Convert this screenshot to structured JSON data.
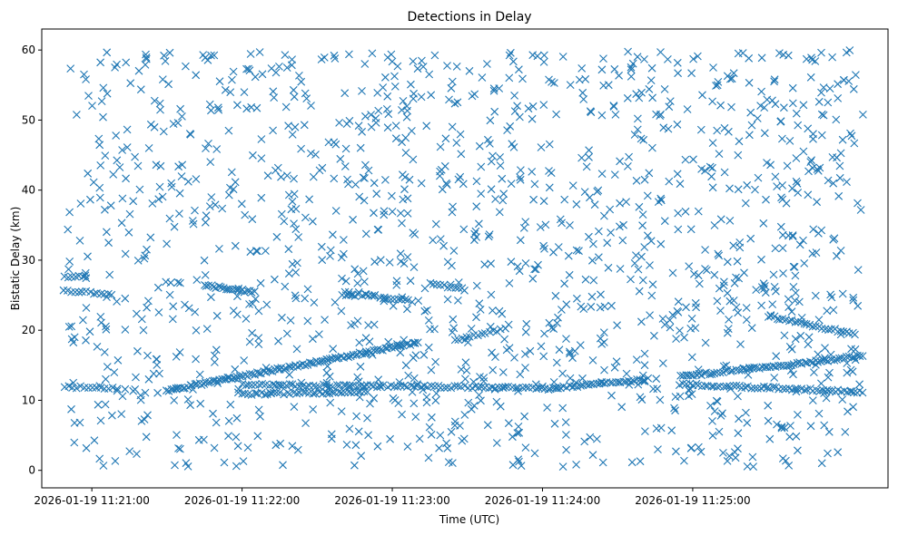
{
  "chart_data": {
    "type": "scatter",
    "title": "Detections in Delay",
    "xlabel": "Time (UTC)",
    "ylabel": "Bistatic Delay (km)",
    "x_axis_type": "datetime",
    "xlim": [
      "2026-01-19 11:20:40",
      "2026-01-19 11:26:18"
    ],
    "ylim": [
      -2.5,
      63
    ],
    "x_ticks": [
      "2026-01-19 11:21:00",
      "2026-01-19 11:22:00",
      "2026-01-19 11:23:00",
      "2026-01-19 11:24:00",
      "2026-01-19 11:25:00"
    ],
    "y_ticks": [
      0,
      10,
      20,
      30,
      40,
      50,
      60
    ],
    "grid": false,
    "marker": "x",
    "series_color": "#1f77b4",
    "series": [
      {
        "description_note": "",
        "tracks": [
          {
            "start": [
              "2026-01-19 11:20:49",
              11.9
            ],
            "end": [
              "2026-01-19 11:21:10",
              11.7
            ],
            "count": 14
          },
          {
            "start": [
              "2026-01-19 11:20:49",
              25.6
            ],
            "end": [
              "2026-01-19 11:21:08",
              25.2
            ],
            "count": 14
          },
          {
            "start": [
              "2026-01-19 11:20:49",
              27.6
            ],
            "end": [
              "2026-01-19 11:20:58",
              27.6
            ],
            "count": 7
          },
          {
            "start": [
              "2026-01-19 11:21:30",
              11.4
            ],
            "end": [
              "2026-01-19 11:23:10",
              18.2
            ],
            "count": 110
          },
          {
            "start": [
              "2026-01-19 11:21:45",
              26.4
            ],
            "end": [
              "2026-01-19 11:22:05",
              25.4
            ],
            "count": 22
          },
          {
            "start": [
              "2026-01-19 11:22:00",
              12.2
            ],
            "end": [
              "2026-01-19 11:24:00",
              11.8
            ],
            "count": 90
          },
          {
            "start": [
              "2026-01-19 11:22:00",
              10.9
            ],
            "end": [
              "2026-01-19 11:22:50",
              11.2
            ],
            "count": 40
          },
          {
            "start": [
              "2026-01-19 11:22:40",
              25.1
            ],
            "end": [
              "2026-01-19 11:22:52",
              24.9
            ],
            "count": 10
          },
          {
            "start": [
              "2026-01-19 11:22:55",
              24.6
            ],
            "end": [
              "2026-01-19 11:23:08",
              24.2
            ],
            "count": 10
          },
          {
            "start": [
              "2026-01-19 11:23:15",
              26.6
            ],
            "end": [
              "2026-01-19 11:23:28",
              26.0
            ],
            "count": 10
          },
          {
            "start": [
              "2026-01-19 11:23:25",
              18.6
            ],
            "end": [
              "2026-01-19 11:23:45",
              20.2
            ],
            "count": 14
          },
          {
            "start": [
              "2026-01-19 11:24:00",
              11.6
            ],
            "end": [
              "2026-01-19 11:24:42",
              13.0
            ],
            "count": 40
          },
          {
            "start": [
              "2026-01-19 11:24:55",
              13.4
            ],
            "end": [
              "2026-01-19 11:26:08",
              16.3
            ],
            "count": 70
          },
          {
            "start": [
              "2026-01-19 11:24:55",
              12.3
            ],
            "end": [
              "2026-01-19 11:26:08",
              11.2
            ],
            "count": 60
          },
          {
            "start": [
              "2026-01-19 11:25:30",
              22.0
            ],
            "end": [
              "2026-01-19 11:26:05",
              19.4
            ],
            "count": 30
          }
        ],
        "clutter": {
          "count": 1400,
          "x_range": [
            "2026-01-19 11:20:50",
            "2026-01-19 11:26:08"
          ],
          "y_range": [
            0.5,
            60
          ]
        }
      }
    ]
  }
}
